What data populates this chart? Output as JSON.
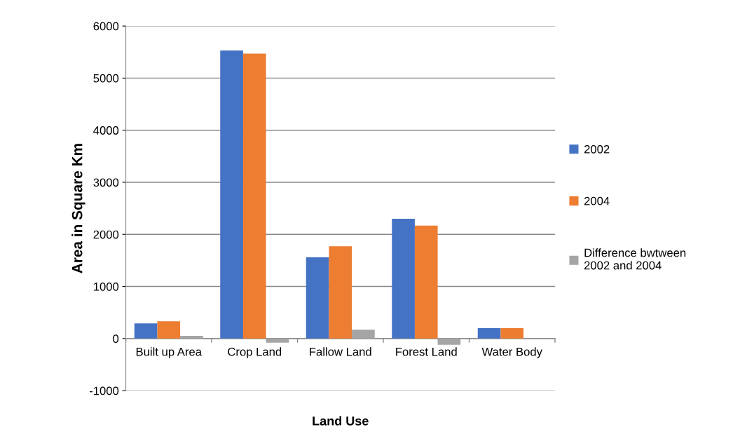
{
  "chart_data": {
    "type": "bar",
    "xlabel": "Land Use",
    "ylabel": "Area in Square Km",
    "categories": [
      "Built up Area",
      "Crop Land",
      "Fallow Land",
      "Forest Land",
      "Water Body"
    ],
    "series": [
      {
        "name": "2002",
        "color": "#4472c4",
        "values": [
          290,
          5530,
          1560,
          2300,
          200
        ]
      },
      {
        "name": "2004",
        "color": "#ed7d31",
        "values": [
          330,
          5470,
          1770,
          2170,
          200
        ]
      },
      {
        "name": "Difference bwtween 2002 and 2004",
        "color": "#a5a5a5",
        "values": [
          50,
          -80,
          170,
          -120,
          0
        ]
      }
    ],
    "ylim": [
      -1000,
      6000
    ],
    "yticks": [
      -1000,
      0,
      1000,
      2000,
      3000,
      4000,
      5000,
      6000
    ],
    "grid": "y",
    "legend": "right"
  }
}
